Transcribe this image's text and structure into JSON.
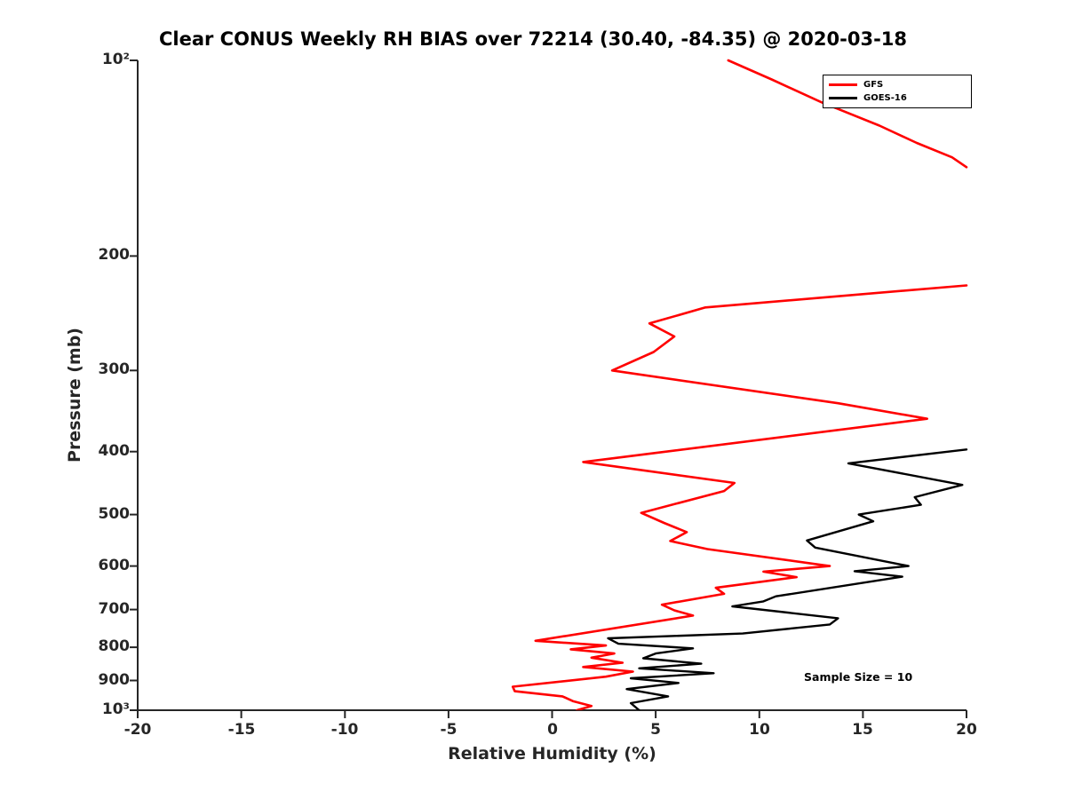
{
  "title": "Clear CONUS Weekly RH BIAS over 72214 (30.40, -84.35) @ 2020-03-18",
  "annotation": {
    "sample_size": "Sample Size = 10"
  },
  "legend": {
    "items": [
      {
        "label": "GFS",
        "color": "#ff0000"
      },
      {
        "label": "GOES-16",
        "color": "#000000"
      }
    ]
  },
  "chart_data": {
    "type": "line",
    "title": "Clear CONUS Weekly RH BIAS over 72214 (30.40, -84.35) @ 2020-03-18",
    "xlabel": "Relative Humidity (%)",
    "ylabel": "Pressure (mb)",
    "xlim": [
      -20,
      20
    ],
    "ylim": [
      100,
      1000
    ],
    "y_scale": "log",
    "y_inverted": true,
    "grid": false,
    "legend_position": "top-right",
    "xticks": [
      -20,
      -15,
      -10,
      -5,
      0,
      5,
      10,
      15,
      20
    ],
    "yticks": [
      {
        "value": 100,
        "label": "10²"
      },
      {
        "value": 200,
        "label": "200"
      },
      {
        "value": 300,
        "label": "300"
      },
      {
        "value": 400,
        "label": "400"
      },
      {
        "value": 500,
        "label": "500"
      },
      {
        "value": 600,
        "label": "600"
      },
      {
        "value": 700,
        "label": "700"
      },
      {
        "value": 800,
        "label": "800"
      },
      {
        "value": 900,
        "label": "900"
      },
      {
        "value": 1000,
        "label": "10³"
      }
    ],
    "annotations": [
      {
        "text": "Sample Size = 10",
        "x": 12.5,
        "pressure": 880
      }
    ],
    "series": [
      {
        "name": "GFS",
        "color": "#ff0000",
        "line_width": 2.6,
        "units": {
          "x": "percent RH bias",
          "y": "pressure mb"
        },
        "segments": [
          [
            [
              100,
              8.5
            ],
            [
              107,
              10.6
            ],
            [
              116,
              13.0
            ],
            [
              126,
              15.8
            ],
            [
              134,
              17.6
            ],
            [
              141,
              19.3
            ],
            [
              146,
              20.0
            ]
          ],
          [
            [
              222,
              20.0
            ],
            [
              240,
              7.4
            ],
            [
              254,
              4.7
            ],
            [
              266,
              5.9
            ],
            [
              281,
              4.9
            ],
            [
              300,
              2.9
            ],
            [
              337,
              13.8
            ],
            [
              356,
              18.1
            ],
            [
              415,
              1.5
            ],
            [
              447,
              8.8
            ],
            [
              460,
              8.3
            ],
            [
              497,
              4.3
            ],
            [
              515,
              5.4
            ],
            [
              532,
              6.5
            ],
            [
              549,
              5.7
            ],
            [
              565,
              7.5
            ],
            [
              600,
              13.4
            ],
            [
              612,
              10.2
            ],
            [
              624,
              11.8
            ],
            [
              648,
              7.9
            ],
            [
              662,
              8.3
            ],
            [
              688,
              5.3
            ],
            [
              702,
              5.9
            ],
            [
              715,
              6.8
            ],
            [
              782,
              -0.8
            ],
            [
              795,
              2.6
            ],
            [
              806,
              0.9
            ],
            [
              818,
              3.0
            ],
            [
              830,
              1.9
            ],
            [
              845,
              3.4
            ],
            [
              858,
              1.5
            ],
            [
              872,
              3.9
            ],
            [
              888,
              2.6
            ],
            [
              920,
              -1.9
            ],
            [
              935,
              -1.8
            ],
            [
              952,
              0.5
            ],
            [
              968,
              1.0
            ],
            [
              985,
              1.9
            ],
            [
              1000,
              1.2
            ]
          ]
        ]
      },
      {
        "name": "GOES-16",
        "color": "#000000",
        "line_width": 2.4,
        "units": {
          "x": "percent RH bias",
          "y": "pressure mb"
        },
        "segments": [
          [
            [
              397,
              20.0
            ],
            [
              417,
              14.3
            ],
            [
              450,
              19.8
            ],
            [
              470,
              17.5
            ],
            [
              483,
              17.8
            ],
            [
              500,
              14.8
            ],
            [
              512,
              15.5
            ],
            [
              548,
              12.3
            ],
            [
              562,
              12.7
            ],
            [
              600,
              17.2
            ],
            [
              611,
              14.6
            ],
            [
              623,
              16.9
            ],
            [
              668,
              10.8
            ],
            [
              680,
              10.2
            ],
            [
              692,
              8.7
            ],
            [
              722,
              13.8
            ],
            [
              738,
              13.4
            ],
            [
              762,
              9.2
            ],
            [
              775,
              2.7
            ],
            [
              790,
              3.2
            ],
            [
              803,
              6.8
            ],
            [
              818,
              5.0
            ],
            [
              832,
              4.4
            ],
            [
              848,
              7.2
            ],
            [
              862,
              4.2
            ],
            [
              877,
              7.8
            ],
            [
              893,
              3.8
            ],
            [
              908,
              6.1
            ],
            [
              928,
              3.6
            ],
            [
              952,
              5.6
            ],
            [
              975,
              3.8
            ],
            [
              1000,
              4.2
            ]
          ]
        ]
      }
    ]
  }
}
